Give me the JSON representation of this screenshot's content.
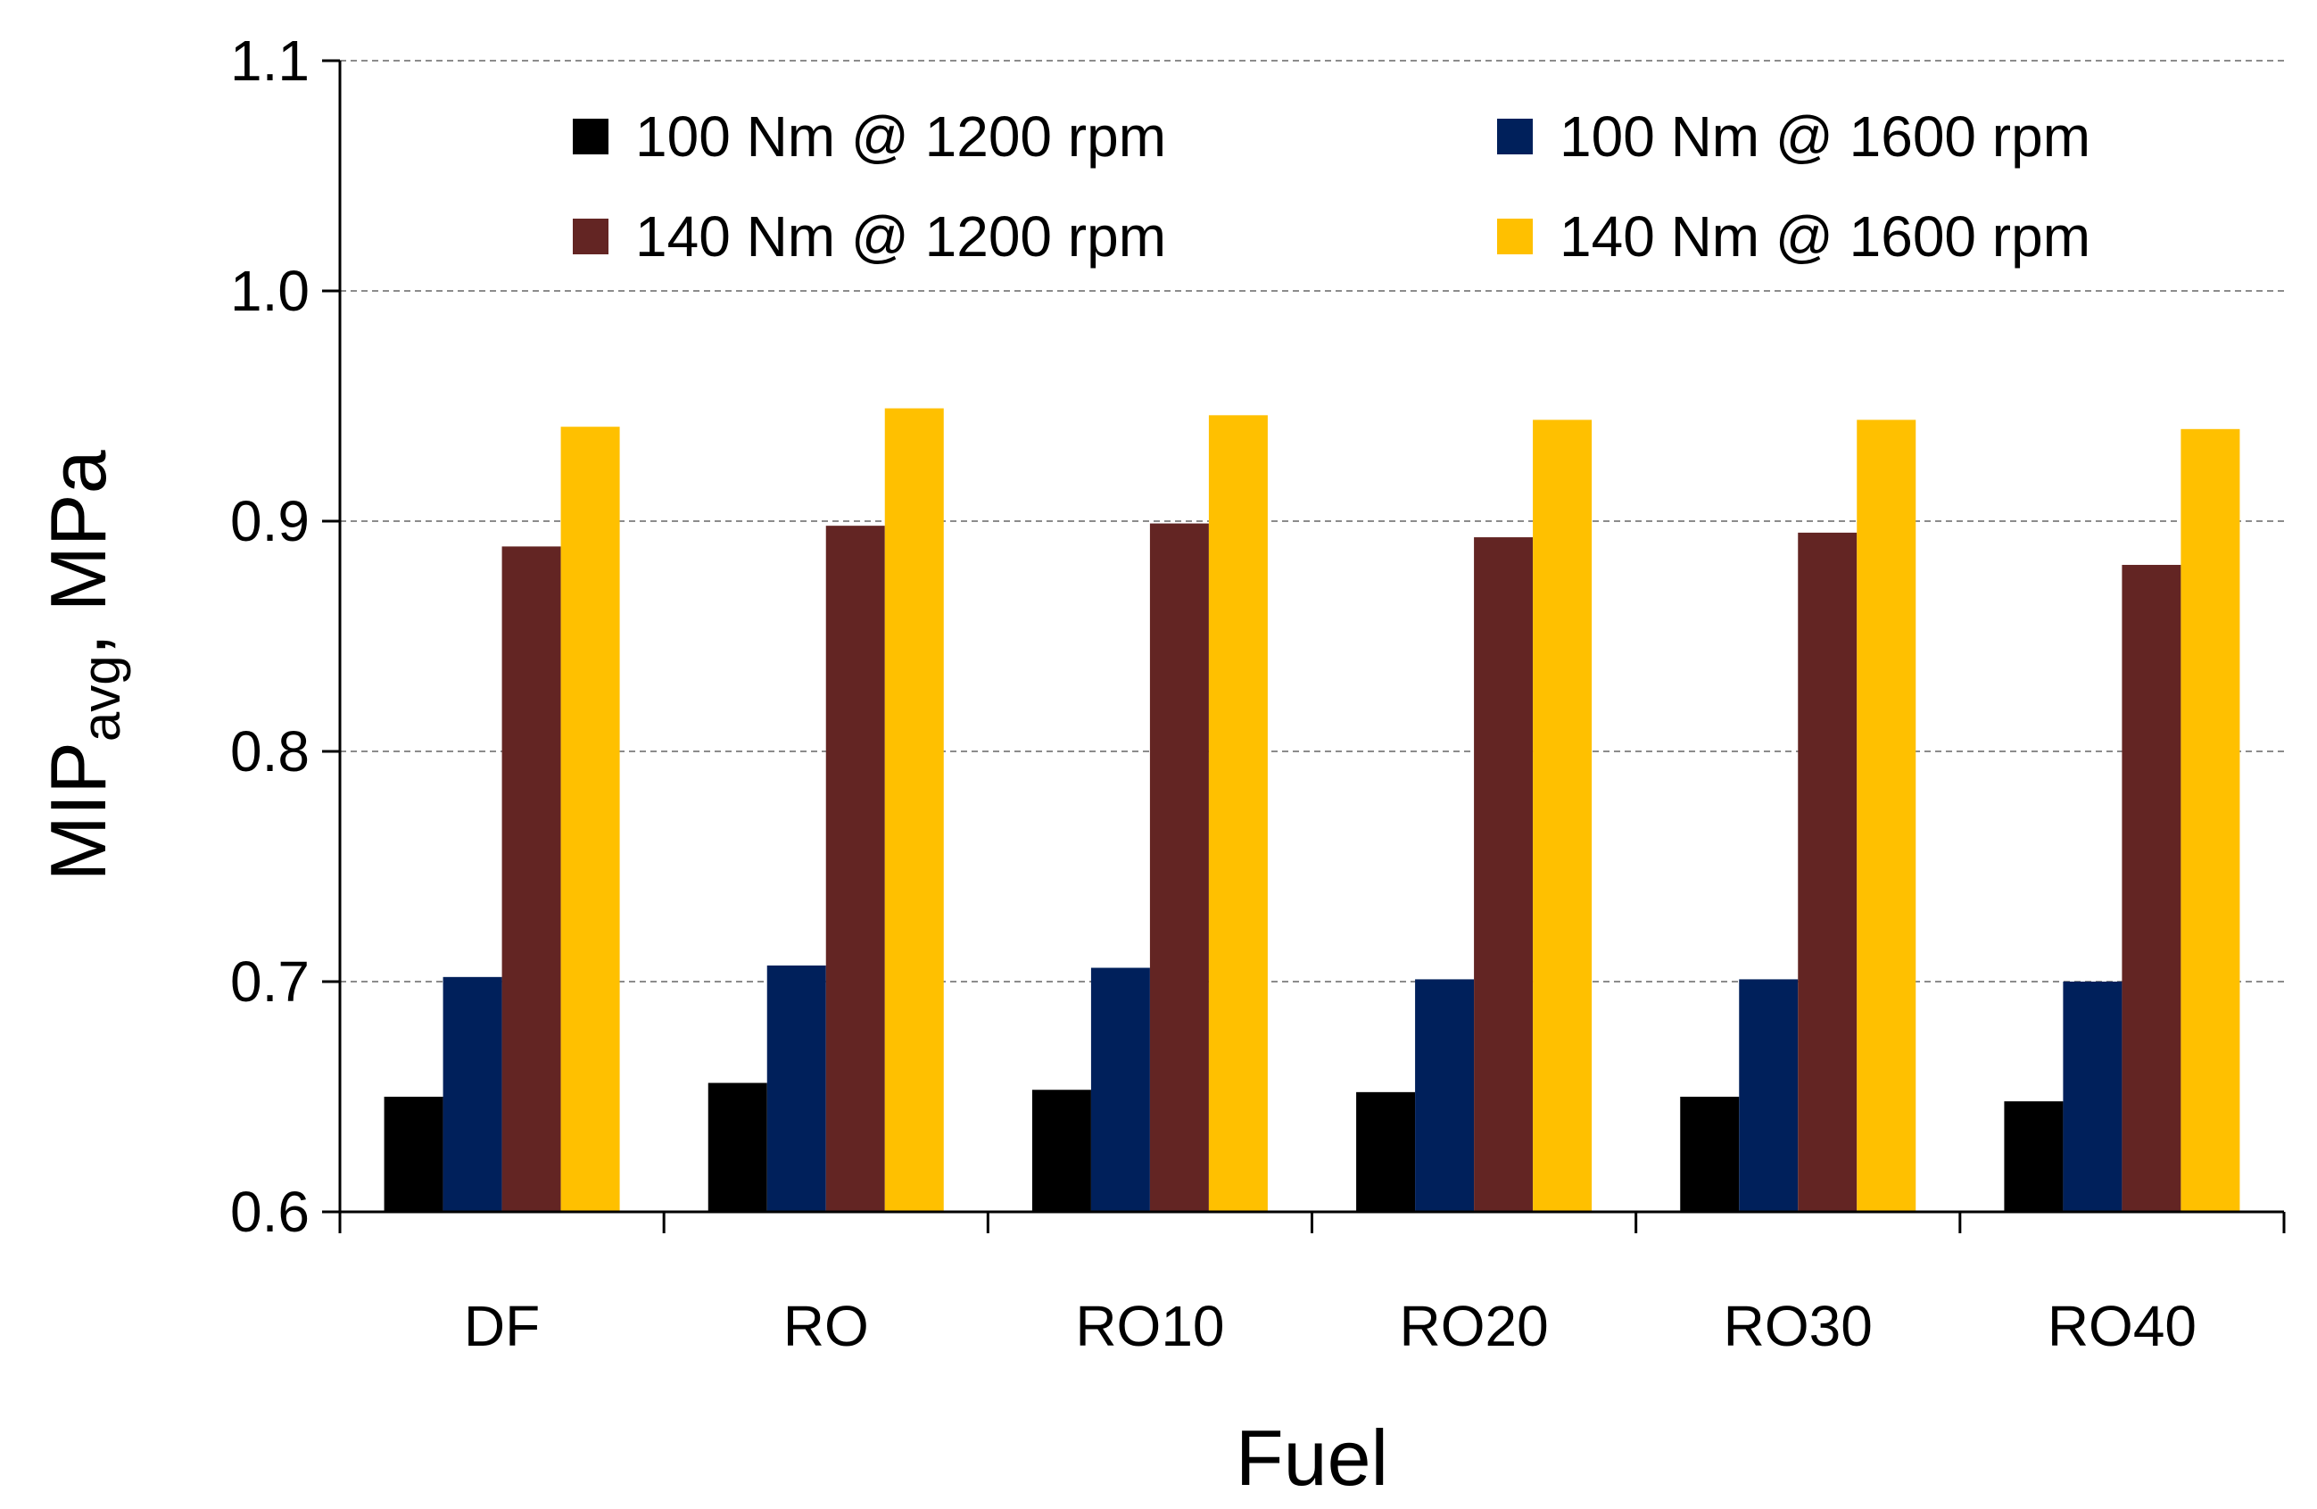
{
  "chart_data": {
    "type": "bar",
    "title": "",
    "xlabel": "Fuel",
    "ylabel": {
      "main": "MIP",
      "sub": "avg",
      "suffix": ", MPa"
    },
    "ylim": [
      0.6,
      1.1
    ],
    "yticks": [
      "0.6",
      "0.7",
      "0.8",
      "0.9",
      "1.0",
      "1.1"
    ],
    "ytick_values": [
      0.6,
      0.7,
      0.8,
      0.9,
      1.0,
      1.1
    ],
    "grid": true,
    "legend_position": "top",
    "categories": [
      "DF",
      "RO",
      "RO10",
      "RO20",
      "RO30",
      "RO40"
    ],
    "series": [
      {
        "name": "100 Nm @ 1200 rpm",
        "color": "#000000",
        "values": [
          0.65,
          0.656,
          0.653,
          0.652,
          0.65,
          0.648
        ]
      },
      {
        "name": "100 Nm @ 1600 rpm",
        "color": "#00205b",
        "values": [
          0.702,
          0.707,
          0.706,
          0.701,
          0.701,
          0.7
        ]
      },
      {
        "name": "140 Nm @ 1200 rpm",
        "color": "#632523",
        "values": [
          0.889,
          0.898,
          0.899,
          0.893,
          0.895,
          0.881
        ]
      },
      {
        "name": "140 Nm @ 1600 rpm",
        "color": "#ffc000",
        "values": [
          0.941,
          0.949,
          0.946,
          0.944,
          0.944,
          0.94
        ]
      }
    ]
  }
}
